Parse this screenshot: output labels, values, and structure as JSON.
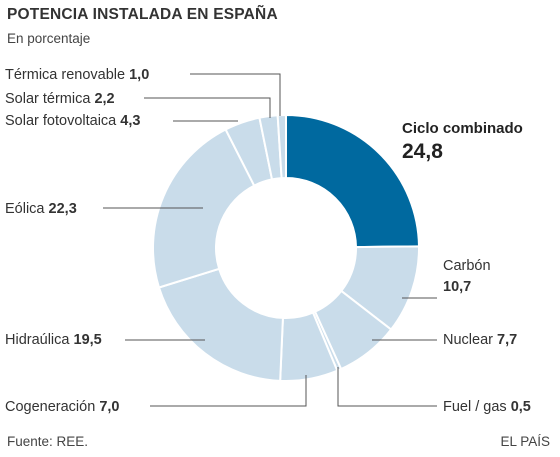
{
  "title": "POTENCIA INSTALADA EN ESPAÑA",
  "subtitle": "En porcentaje",
  "source": "Fuente: REE.",
  "credit": "EL PAÍS",
  "colors": {
    "highlight": "#00699f",
    "base": "#c9dcea",
    "separator": "#ffffff",
    "leader": "#555555"
  },
  "chart_data": {
    "type": "pie",
    "variant": "donut",
    "title": "POTENCIA INSTALADA EN ESPAÑA",
    "subtitle": "En porcentaje",
    "slices": [
      {
        "label": "Ciclo combinado",
        "value": 24.8,
        "value_text": "24,8",
        "highlight": true
      },
      {
        "label": "Carbón",
        "value": 10.7,
        "value_text": "10,7"
      },
      {
        "label": "Nuclear",
        "value": 7.7,
        "value_text": "7,7"
      },
      {
        "label": "Fuel / gas",
        "value": 0.5,
        "value_text": "0,5"
      },
      {
        "label": "Cogeneración",
        "value": 7.0,
        "value_text": "7,0"
      },
      {
        "label": "Hidraúlica",
        "value": 19.5,
        "value_text": "19,5"
      },
      {
        "label": "Eólica",
        "value": 22.3,
        "value_text": "22,3"
      },
      {
        "label": "Solar fotovoltaica",
        "value": 4.3,
        "value_text": "4,3"
      },
      {
        "label": "Solar térmica",
        "value": 2.2,
        "value_text": "2,2"
      },
      {
        "label": "Térmica renovable",
        "value": 1.0,
        "value_text": "1,0"
      }
    ]
  }
}
